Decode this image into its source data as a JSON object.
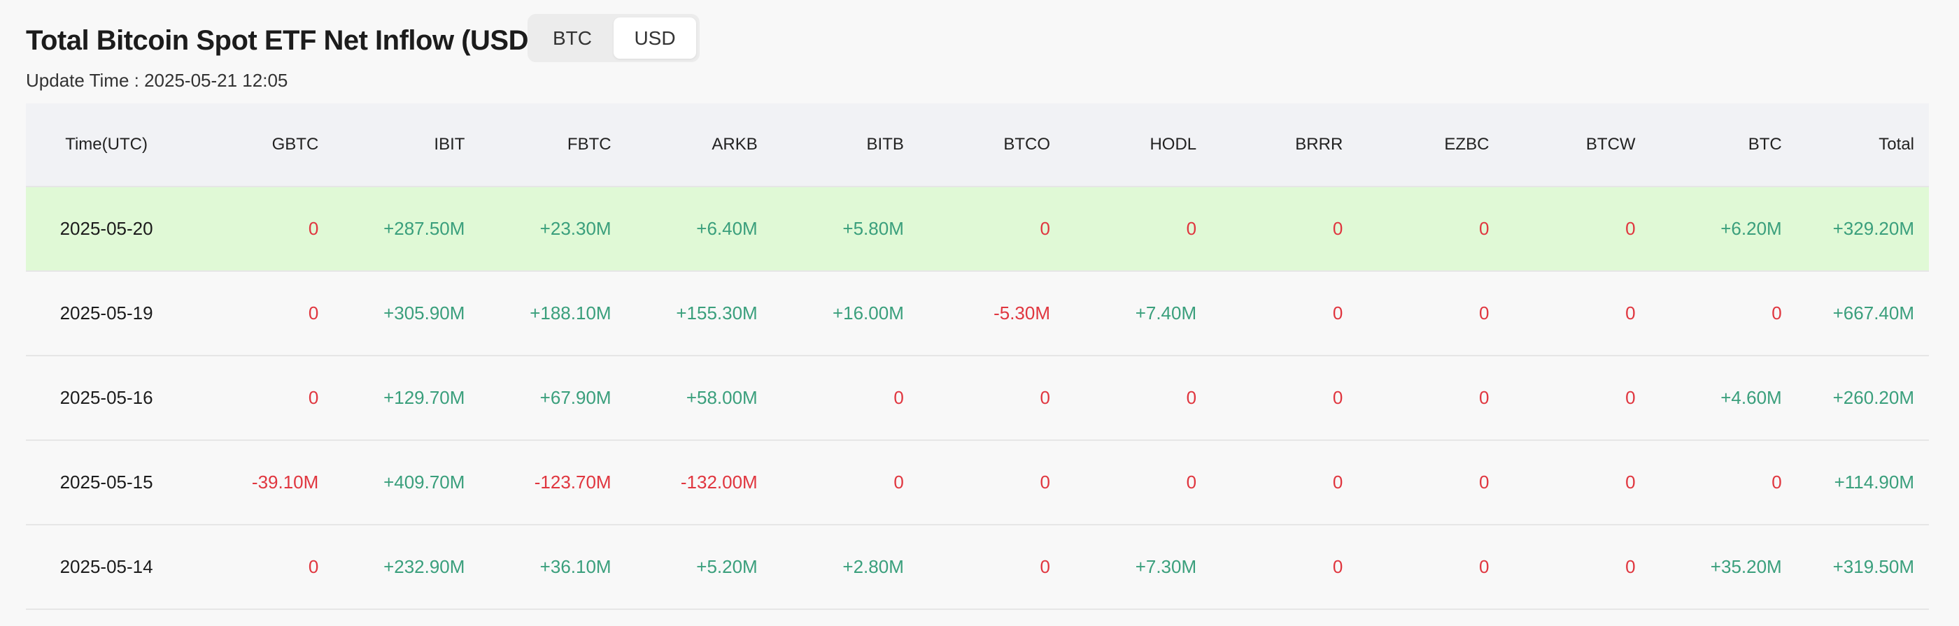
{
  "header": {
    "title": "Total Bitcoin Spot ETF Net Inflow (USD)",
    "toggle": [
      "BTC",
      "USD"
    ],
    "selected": 1,
    "update_time": "Update Time : 2025-05-21 12:05"
  },
  "table": {
    "columns": [
      "Time(UTC)",
      "GBTC",
      "IBIT",
      "FBTC",
      "ARKB",
      "BITB",
      "BTCO",
      "HODL",
      "BRRR",
      "EZBC",
      "BTCW",
      "BTC",
      "Total"
    ],
    "highlight_row": 0,
    "rows": [
      [
        "2025-05-20",
        "0",
        "+287.50M",
        "+23.30M",
        "+6.40M",
        "+5.80M",
        "0",
        "0",
        "0",
        "0",
        "0",
        "+6.20M",
        "+329.20M"
      ],
      [
        "2025-05-19",
        "0",
        "+305.90M",
        "+188.10M",
        "+155.30M",
        "+16.00M",
        "-5.30M",
        "+7.40M",
        "0",
        "0",
        "0",
        "0",
        "+667.40M"
      ],
      [
        "2025-05-16",
        "0",
        "+129.70M",
        "+67.90M",
        "+58.00M",
        "0",
        "0",
        "0",
        "0",
        "0",
        "0",
        "+4.60M",
        "+260.20M"
      ],
      [
        "2025-05-15",
        "-39.10M",
        "+409.70M",
        "-123.70M",
        "-132.00M",
        "0",
        "0",
        "0",
        "0",
        "0",
        "0",
        "0",
        "+114.90M"
      ],
      [
        "2025-05-14",
        "0",
        "+232.90M",
        "+36.10M",
        "+5.20M",
        "+2.80M",
        "0",
        "+7.30M",
        "0",
        "0",
        "0",
        "+35.20M",
        "+319.50M"
      ]
    ]
  }
}
